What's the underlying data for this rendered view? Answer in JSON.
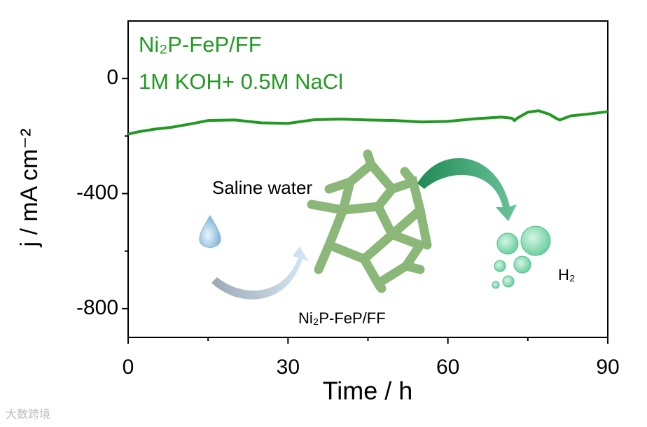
{
  "chart_data": {
    "type": "line",
    "xlabel": "Time / h",
    "ylabel": "j / mA cm⁻²",
    "x": [
      0,
      2,
      5,
      8,
      12,
      15,
      20,
      25,
      30,
      35,
      40,
      45,
      50,
      55,
      60,
      65,
      70,
      72,
      72.5,
      73,
      75,
      77,
      79,
      80.5,
      81,
      83,
      87,
      90
    ],
    "series": [
      {
        "name": "Ni₂P-FeP/FF",
        "color": "#229922",
        "values": [
          -193,
          -185,
          -176,
          -170,
          -157,
          -146,
          -144,
          -154,
          -156,
          -143,
          -141,
          -144,
          -146,
          -151,
          -149,
          -140,
          -134,
          -138,
          -146,
          -138,
          -117,
          -112,
          -124,
          -140,
          -144,
          -130,
          -122,
          -115
        ]
      }
    ],
    "annotations": [
      "1M KOH+ 0.5M NaCl",
      "Saline water",
      "Ni₂P-FeP/FF",
      "H₂"
    ],
    "watermark": "大数跨境",
    "xlim": [
      0,
      90
    ],
    "xticks": [
      0,
      30,
      60,
      90
    ],
    "xminor": [
      15,
      45,
      75
    ],
    "ylim": [
      -900,
      200
    ],
    "yticks": [
      -800,
      -400,
      0
    ],
    "yminor": [
      -600,
      -200
    ]
  }
}
